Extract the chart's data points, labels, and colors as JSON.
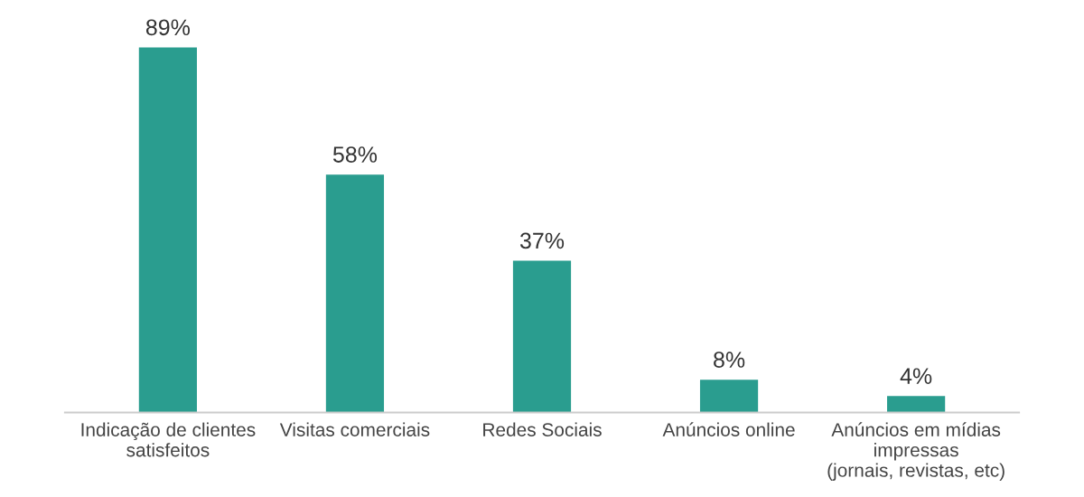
{
  "chart_data": {
    "type": "bar",
    "categories": [
      "Indicação de clientes\nsatisfeitos",
      "Visitas comerciais",
      "Redes Sociais",
      "Anúncios online",
      "Anúncios em mídias\nimpressas\n(jornais, revistas, etc)"
    ],
    "values": [
      89,
      58,
      37,
      8,
      4
    ],
    "value_labels": [
      "89%",
      "58%",
      "37%",
      "8%",
      "4%"
    ],
    "color": "#2a9d8f",
    "grid": false,
    "legend": false
  }
}
